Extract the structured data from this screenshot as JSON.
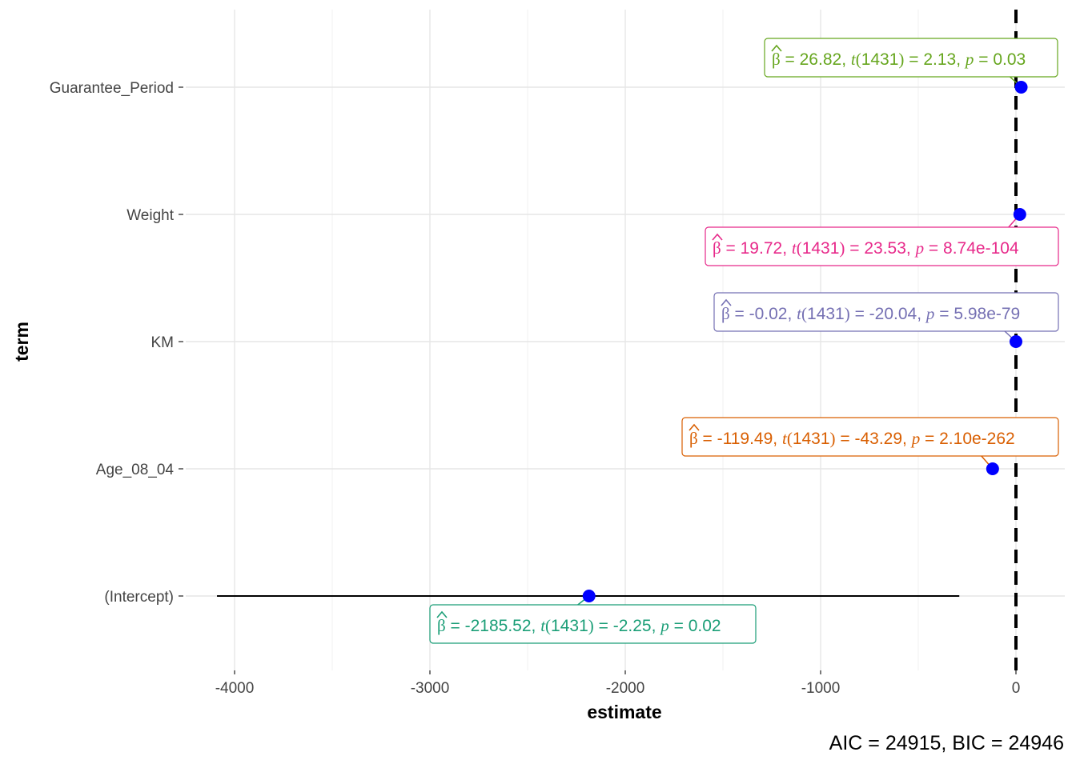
{
  "chart_data": {
    "type": "coefficient-plot",
    "xlabel": "estimate",
    "ylabel": "term",
    "xlim": [
      -4250,
      250
    ],
    "xticks": [
      -4000,
      -3000,
      -2000,
      -1000,
      0
    ],
    "reference_line_x": 0,
    "point_color": "#0000ff",
    "terms": [
      {
        "term": "Guarantee_Period",
        "estimate": 26.82,
        "ci_low": 26.82,
        "ci_high": 26.82,
        "label_parts": [
          "26.82",
          "1431",
          "2.13",
          "0.03"
        ],
        "color": "#66a61e"
      },
      {
        "term": "Weight",
        "estimate": 19.72,
        "ci_low": 19.72,
        "ci_high": 19.72,
        "label_parts": [
          "19.72",
          "1431",
          "23.53",
          "8.74e-104"
        ],
        "color": "#e7298a"
      },
      {
        "term": "KM",
        "estimate": -0.02,
        "ci_low": -0.02,
        "ci_high": -0.02,
        "label_parts": [
          "-0.02",
          "1431",
          "-20.04",
          "5.98e-79"
        ],
        "color": "#7570b3"
      },
      {
        "term": "Age_08_04",
        "estimate": -119.49,
        "ci_low": -119.49,
        "ci_high": -119.49,
        "label_parts": [
          "-119.49",
          "1431",
          "-43.29",
          "2.10e-262"
        ],
        "color": "#d95f02"
      },
      {
        "term": "(Intercept)",
        "estimate": -2185.52,
        "ci_low": -4090,
        "ci_high": -290,
        "label_parts": [
          "-2185.52",
          "1431",
          "-2.25",
          "0.02"
        ],
        "color": "#1b9e77"
      }
    ],
    "caption": {
      "aic": "24915",
      "bic": "24946"
    }
  }
}
